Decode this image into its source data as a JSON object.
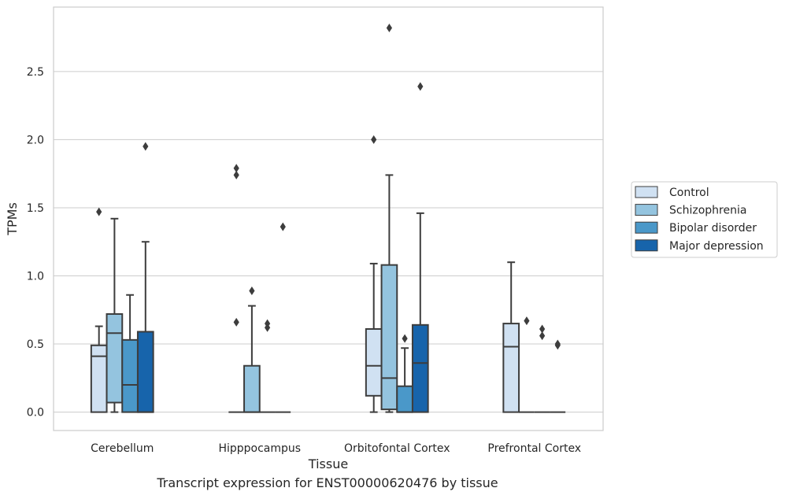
{
  "chart_data": {
    "type": "box",
    "xlabel": "Tissue",
    "ylabel": "TPMs",
    "caption": "Transcript expression for ENST00000620476 by tissue",
    "categories": [
      "Cerebellum",
      "Hipppocampus",
      "Orbitofontal Cortex",
      "Prefrontal Cortex"
    ],
    "ylim": [
      -0.14,
      2.96
    ],
    "yticks": [
      "0.0",
      "0.5",
      "1.0",
      "1.5",
      "2.0",
      "2.5"
    ],
    "grid": true,
    "legend_position": "right",
    "series": [
      {
        "name": "Control",
        "color": "#d0e1f2",
        "boxes": [
          {
            "q1": 0.0,
            "median": 0.41,
            "q3": 0.49,
            "whisker_low": 0.0,
            "whisker_high": 0.63,
            "outliers": [
              1.47
            ]
          },
          {
            "q1": 0.0,
            "median": 0.0,
            "q3": 0.0,
            "whisker_low": 0.0,
            "whisker_high": 0.0,
            "outliers": [
              0.66,
              1.74,
              1.79
            ]
          },
          {
            "q1": 0.12,
            "median": 0.34,
            "q3": 0.61,
            "whisker_low": 0.0,
            "whisker_high": 1.09,
            "outliers": [
              2.0
            ]
          },
          {
            "q1": 0.0,
            "median": 0.48,
            "q3": 0.65,
            "whisker_low": 0.0,
            "whisker_high": 1.1,
            "outliers": []
          }
        ]
      },
      {
        "name": "Schizophrenia",
        "color": "#94c4df",
        "boxes": [
          {
            "q1": 0.07,
            "median": 0.58,
            "q3": 0.72,
            "whisker_low": 0.0,
            "whisker_high": 1.42,
            "outliers": []
          },
          {
            "q1": 0.0,
            "median": 0.0,
            "q3": 0.34,
            "whisker_low": 0.0,
            "whisker_high": 0.78,
            "outliers": [
              0.89
            ]
          },
          {
            "q1": 0.02,
            "median": 0.25,
            "q3": 1.08,
            "whisker_low": 0.0,
            "whisker_high": 1.74,
            "outliers": [
              2.82
            ]
          },
          {
            "q1": 0.0,
            "median": 0.0,
            "q3": 0.0,
            "whisker_low": 0.0,
            "whisker_high": 0.0,
            "outliers": [
              0.67
            ]
          }
        ]
      },
      {
        "name": "Bipolar disorder",
        "color": "#4a98c9",
        "boxes": [
          {
            "q1": 0.0,
            "median": 0.2,
            "q3": 0.53,
            "whisker_low": 0.0,
            "whisker_high": 0.86,
            "outliers": []
          },
          {
            "q1": 0.0,
            "median": 0.0,
            "q3": 0.0,
            "whisker_low": 0.0,
            "whisker_high": 0.0,
            "outliers": [
              0.62,
              0.65
            ]
          },
          {
            "q1": 0.0,
            "median": 0.0,
            "q3": 0.19,
            "whisker_low": 0.0,
            "whisker_high": 0.47,
            "outliers": [
              0.54
            ]
          },
          {
            "q1": 0.0,
            "median": 0.0,
            "q3": 0.0,
            "whisker_low": 0.0,
            "whisker_high": 0.0,
            "outliers": [
              0.56,
              0.61
            ]
          }
        ]
      },
      {
        "name": "Major depression",
        "color": "#1764ab",
        "boxes": [
          {
            "q1": 0.0,
            "median": 0.0,
            "q3": 0.59,
            "whisker_low": 0.0,
            "whisker_high": 1.25,
            "outliers": [
              1.95
            ]
          },
          {
            "q1": 0.0,
            "median": 0.0,
            "q3": 0.0,
            "whisker_low": 0.0,
            "whisker_high": 0.0,
            "outliers": [
              1.36
            ]
          },
          {
            "q1": 0.0,
            "median": 0.36,
            "q3": 0.64,
            "whisker_low": 0.0,
            "whisker_high": 1.46,
            "outliers": [
              2.39
            ]
          },
          {
            "q1": 0.0,
            "median": 0.0,
            "q3": 0.0,
            "whisker_low": 0.0,
            "whisker_high": 0.0,
            "outliers": [
              0.49,
              0.5
            ]
          }
        ]
      }
    ]
  }
}
